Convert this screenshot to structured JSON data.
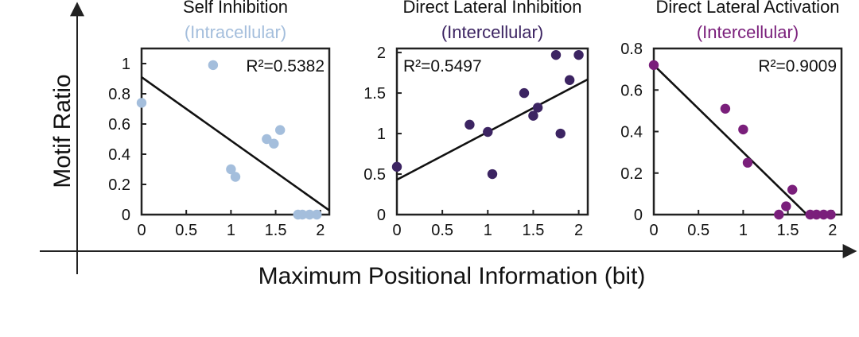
{
  "figure": {
    "ylabel": "Motif Ratio",
    "xlabel": "Maximum Positional Information (bit)",
    "axis_color": "#222222"
  },
  "chart_data": [
    {
      "type": "scatter",
      "title": "Self Inhibition",
      "subtitle": "(Intracellular)",
      "subtitle_color": "#a4bedc",
      "point_color": "#a4bedc",
      "r2_label": "R²=0.5382",
      "r2_position": "top-right",
      "xlim": [
        0,
        2.1
      ],
      "ylim": [
        0,
        1.1
      ],
      "xticks": [
        0,
        0.5,
        1,
        1.5,
        2
      ],
      "xtick_labels": [
        "0",
        "0.5",
        "1",
        "1.5",
        "2"
      ],
      "yticks": [
        0,
        0.2,
        0.4,
        0.6,
        0.8,
        1
      ],
      "ytick_labels": [
        "0",
        "0.2",
        "0.4",
        "0.6",
        "0.8",
        "1"
      ],
      "points": [
        {
          "x": 0.0,
          "y": 0.74
        },
        {
          "x": 0.8,
          "y": 0.99
        },
        {
          "x": 1.0,
          "y": 0.3
        },
        {
          "x": 1.05,
          "y": 0.25
        },
        {
          "x": 1.4,
          "y": 0.5
        },
        {
          "x": 1.48,
          "y": 0.47
        },
        {
          "x": 1.55,
          "y": 0.56
        },
        {
          "x": 1.75,
          "y": 0.0
        },
        {
          "x": 1.8,
          "y": 0.0
        },
        {
          "x": 1.88,
          "y": 0.0
        },
        {
          "x": 1.96,
          "y": 0.0
        }
      ],
      "fit": {
        "intercept": 0.91,
        "slope": -0.42
      }
    },
    {
      "type": "scatter",
      "title": "Direct Lateral Inhibition",
      "subtitle": "(Intercellular)",
      "subtitle_color": "#3c2462",
      "point_color": "#3c2462",
      "r2_label": "R²=0.5497",
      "r2_position": "top-left",
      "xlim": [
        0,
        2.1
      ],
      "ylim": [
        0,
        2.05
      ],
      "xticks": [
        0,
        0.5,
        1,
        1.5,
        2
      ],
      "xtick_labels": [
        "0",
        "0.5",
        "1",
        "1.5",
        "2"
      ],
      "yticks": [
        0,
        0.5,
        1,
        1.5,
        2
      ],
      "ytick_labels": [
        "0",
        "0.5",
        "1",
        "1.5",
        "2"
      ],
      "points": [
        {
          "x": 0.0,
          "y": 0.59
        },
        {
          "x": 0.8,
          "y": 1.11
        },
        {
          "x": 1.0,
          "y": 1.02
        },
        {
          "x": 1.05,
          "y": 0.5
        },
        {
          "x": 1.4,
          "y": 1.5
        },
        {
          "x": 1.5,
          "y": 1.22
        },
        {
          "x": 1.55,
          "y": 1.32
        },
        {
          "x": 1.75,
          "y": 1.97
        },
        {
          "x": 1.8,
          "y": 1.0
        },
        {
          "x": 1.9,
          "y": 1.66
        },
        {
          "x": 2.0,
          "y": 1.97
        }
      ],
      "fit": {
        "intercept": 0.43,
        "slope": 0.59
      }
    },
    {
      "type": "scatter",
      "title": "Direct Lateral Activation",
      "subtitle": "(Intercellular)",
      "subtitle_color": "#7a1f7b",
      "point_color": "#7a1f7b",
      "r2_label": "R²=0.9009",
      "r2_position": "top-right",
      "xlim": [
        0,
        2.1
      ],
      "ylim": [
        0,
        0.8
      ],
      "xticks": [
        0,
        0.5,
        1,
        1.5,
        2
      ],
      "xtick_labels": [
        "0",
        "0.5",
        "1",
        "1.5",
        "2"
      ],
      "yticks": [
        0,
        0.2,
        0.4,
        0.6,
        0.8
      ],
      "ytick_labels": [
        "0",
        "0.2",
        "0.4",
        "0.6",
        "0.8"
      ],
      "points": [
        {
          "x": 0.0,
          "y": 0.72
        },
        {
          "x": 0.8,
          "y": 0.51
        },
        {
          "x": 1.0,
          "y": 0.41
        },
        {
          "x": 1.05,
          "y": 0.25
        },
        {
          "x": 1.4,
          "y": 0.0
        },
        {
          "x": 1.48,
          "y": 0.04
        },
        {
          "x": 1.55,
          "y": 0.12
        },
        {
          "x": 1.75,
          "y": 0.0
        },
        {
          "x": 1.82,
          "y": 0.0
        },
        {
          "x": 1.9,
          "y": 0.0
        },
        {
          "x": 1.98,
          "y": 0.0
        }
      ],
      "fit": {
        "intercept": 0.72,
        "slope": -0.42
      }
    }
  ]
}
